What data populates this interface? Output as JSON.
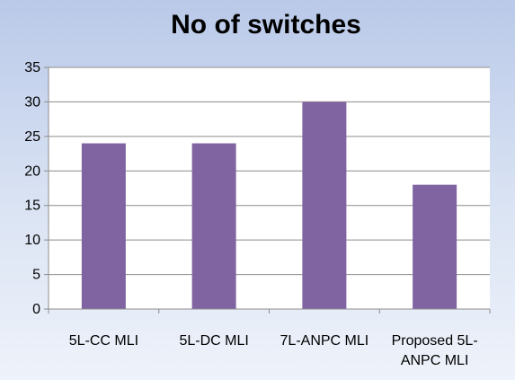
{
  "chart_data": {
    "type": "bar",
    "title": "No of switches",
    "xlabel": "",
    "ylabel": "",
    "categories": [
      "5L-CC MLI",
      "5L-DC MLI",
      "7L-ANPC MLI",
      "Proposed 5L-ANPC MLI"
    ],
    "category_lines": [
      [
        "5L-CC MLI"
      ],
      [
        "5L-DC MLI"
      ],
      [
        "7L-ANPC MLI"
      ],
      [
        "Proposed 5L-",
        "ANPC MLI"
      ]
    ],
    "values": [
      24,
      24,
      30,
      18
    ],
    "ylim": [
      0,
      35
    ],
    "yticks": [
      0,
      5,
      10,
      15,
      20,
      25,
      30,
      35
    ],
    "grid": true,
    "legend": "none",
    "bar_color": "#8064a2"
  }
}
